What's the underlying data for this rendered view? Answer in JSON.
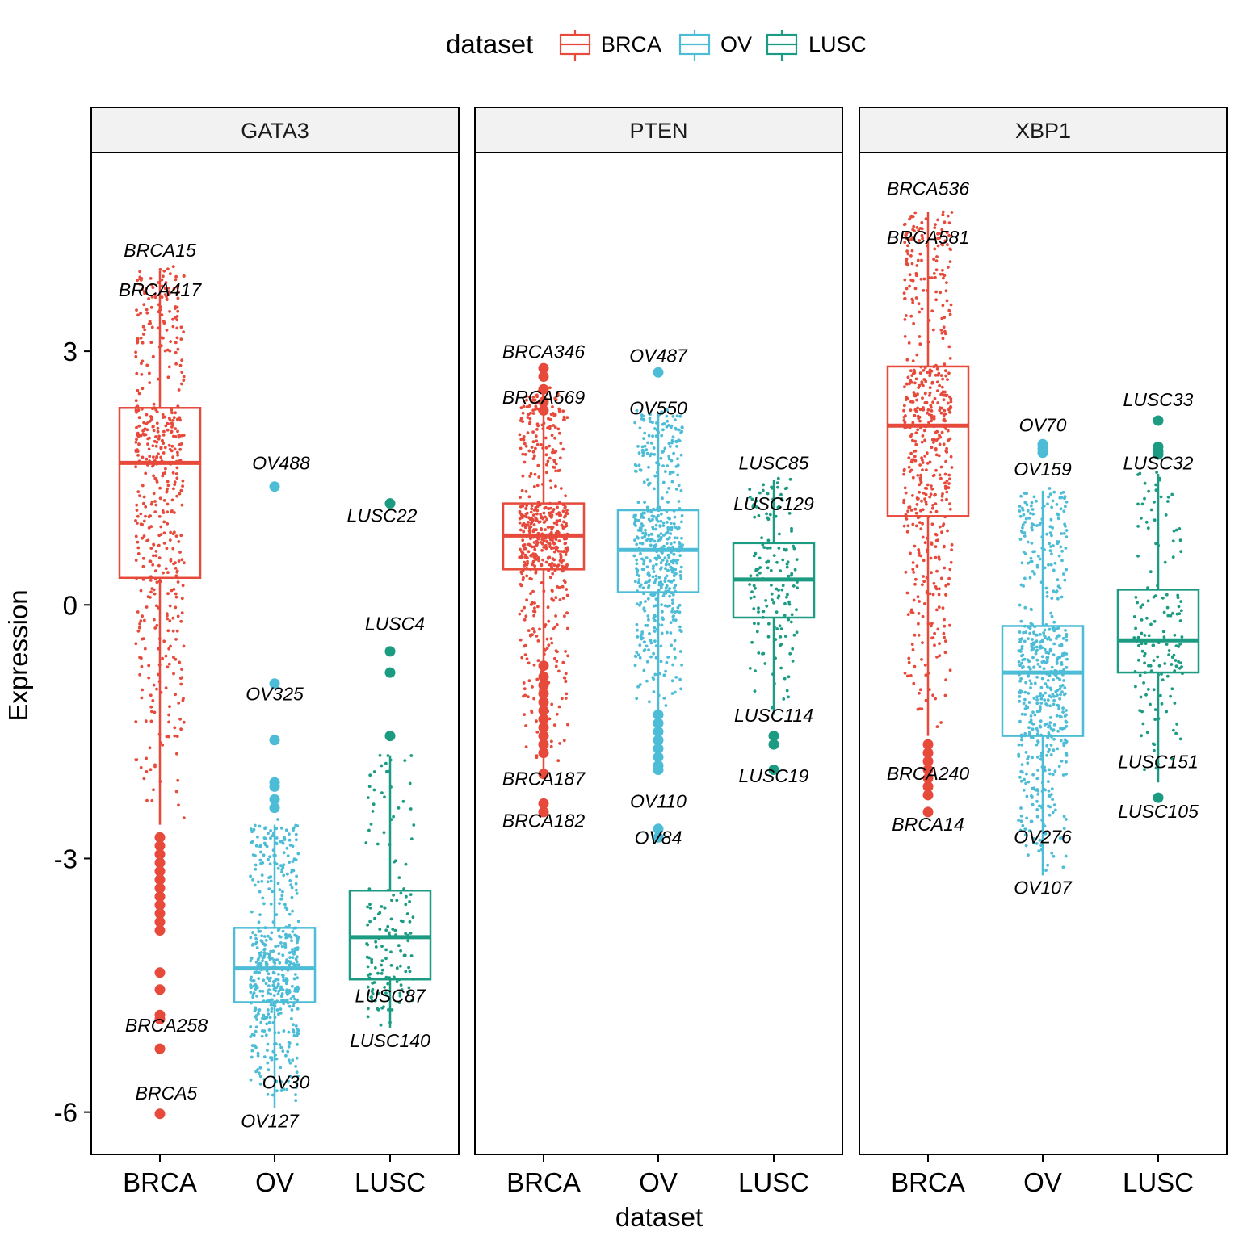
{
  "colors": {
    "BRCA": "#E7493A",
    "OV": "#4CBCD7",
    "LUSC": "#1A9B82"
  },
  "chart_data": {
    "type": "box",
    "subtype": "faceted boxplot with jittered points and labelled outliers",
    "legend": {
      "title": "dataset",
      "position": "top",
      "entries": [
        "BRCA",
        "OV",
        "LUSC"
      ]
    },
    "xlabel": "dataset",
    "ylabel": "Expression",
    "ylim": [
      -6.5,
      5.35
    ],
    "yticks": [
      3,
      0,
      -3,
      -6
    ],
    "ytick_labels": [
      "3",
      "0",
      "-3",
      "-6"
    ],
    "categories": [
      "BRCA",
      "OV",
      "LUSC"
    ],
    "facets": [
      {
        "name": "GATA3",
        "boxes": [
          {
            "dataset": "BRCA",
            "q1": 0.32,
            "median": 1.68,
            "q3": 2.33,
            "whisker_low": -2.6,
            "whisker_high": 3.95,
            "n_points": 520,
            "outliers": [
              -2.75,
              -2.85,
              -2.95,
              -3.05,
              -3.15,
              -3.25,
              -3.35,
              -3.45,
              -3.55,
              -3.65,
              -3.75,
              -3.85,
              -4.35,
              -4.55,
              -4.85,
              -4.9,
              -5.25,
              -6.02
            ],
            "labels": [
              {
                "text": "BRCA15",
                "y": 4.12,
                "dx": 0
              },
              {
                "text": "BRCA417",
                "y": 3.65,
                "dx": 0
              },
              {
                "text": "BRCA258",
                "y": -5.05,
                "dx": 8
              },
              {
                "text": "BRCA5",
                "y": -5.85,
                "dx": 8
              }
            ]
          },
          {
            "dataset": "OV",
            "q1": -4.7,
            "median": -4.3,
            "q3": -3.82,
            "whisker_low": -5.95,
            "whisker_high": -2.6,
            "n_points": 500,
            "outliers": [
              1.4,
              -0.93,
              -1.6,
              -2.1,
              -2.15,
              -2.3,
              -2.4
            ],
            "labels": [
              {
                "text": "OV488",
                "y": 1.6,
                "dx": 8
              },
              {
                "text": "OV325",
                "y": -1.13,
                "dx": 0
              },
              {
                "text": "OV30",
                "y": -5.72,
                "dx": 14
              },
              {
                "text": "OV127",
                "y": -6.18,
                "dx": -6
              }
            ]
          },
          {
            "dataset": "LUSC",
            "q1": -4.43,
            "median": -3.93,
            "q3": -3.38,
            "whisker_low": -5.0,
            "whisker_high": -1.78,
            "n_points": 150,
            "outliers": [
              1.2,
              -0.55,
              -0.8,
              -1.55
            ],
            "labels": [
              {
                "text": "LUSC22",
                "y": 0.98,
                "dx": -10
              },
              {
                "text": "LUSC4",
                "y": -0.3,
                "dx": 6
              },
              {
                "text": "LUSC87",
                "y": -4.7,
                "dx": 0
              },
              {
                "text": "LUSC140",
                "y": -5.23,
                "dx": 0
              }
            ]
          }
        ]
      },
      {
        "name": "PTEN",
        "boxes": [
          {
            "dataset": "BRCA",
            "q1": 0.42,
            "median": 0.82,
            "q3": 1.2,
            "whisker_low": -1.95,
            "whisker_high": 2.5,
            "n_points": 560,
            "outliers": [
              2.8,
              2.7,
              2.55,
              2.4,
              2.3,
              -0.72,
              -0.85,
              -0.95,
              -1.05,
              -1.15,
              -1.25,
              -1.35,
              -1.45,
              -1.55,
              -1.65,
              -1.75,
              -2.0,
              -2.35,
              -2.45
            ],
            "labels": [
              {
                "text": "BRCA346",
                "y": 2.92,
                "dx": 0
              },
              {
                "text": "BRCA569",
                "y": 2.38,
                "dx": 0
              },
              {
                "text": "BRCA187",
                "y": -2.13,
                "dx": 0
              },
              {
                "text": "BRCA182",
                "y": -2.63,
                "dx": 0
              }
            ]
          },
          {
            "dataset": "OV",
            "q1": 0.15,
            "median": 0.65,
            "q3": 1.12,
            "whisker_low": -1.25,
            "whisker_high": 2.28,
            "n_points": 500,
            "outliers": [
              2.75,
              -1.3,
              -1.4,
              -1.5,
              -1.6,
              -1.7,
              -1.8,
              -1.9,
              -1.95,
              -2.65,
              -2.75
            ],
            "labels": [
              {
                "text": "OV487",
                "y": 2.87,
                "dx": 0
              },
              {
                "text": "OV550",
                "y": 2.25,
                "dx": 0
              },
              {
                "text": "OV110",
                "y": -2.4,
                "dx": 0
              },
              {
                "text": "OV84",
                "y": -2.83,
                "dx": 0
              }
            ]
          },
          {
            "dataset": "LUSC",
            "q1": -0.15,
            "median": 0.3,
            "q3": 0.73,
            "whisker_low": -1.3,
            "whisker_high": 1.48,
            "n_points": 150,
            "outliers": [
              -1.55,
              -1.65,
              -1.95
            ],
            "labels": [
              {
                "text": "LUSC85",
                "y": 1.6,
                "dx": 0
              },
              {
                "text": "LUSC129",
                "y": 1.12,
                "dx": 0
              },
              {
                "text": "LUSC114",
                "y": -1.38,
                "dx": 0
              },
              {
                "text": "LUSC19",
                "y": -2.1,
                "dx": 0
              }
            ]
          }
        ]
      },
      {
        "name": "XBP1",
        "boxes": [
          {
            "dataset": "BRCA",
            "q1": 1.05,
            "median": 2.12,
            "q3": 2.82,
            "whisker_low": -1.55,
            "whisker_high": 4.65,
            "n_points": 560,
            "outliers": [
              -1.65,
              -1.75,
              -1.85,
              -1.95,
              -2.05,
              -2.15,
              -2.25,
              -2.45
            ],
            "labels": [
              {
                "text": "BRCA536",
                "y": 4.85,
                "dx": 0
              },
              {
                "text": "BRCA581",
                "y": 4.27,
                "dx": 0
              },
              {
                "text": "BRCA240",
                "y": -2.07,
                "dx": 0
              },
              {
                "text": "BRCA14",
                "y": -2.67,
                "dx": 0
              }
            ]
          },
          {
            "dataset": "OV",
            "q1": -1.55,
            "median": -0.8,
            "q3": -0.25,
            "whisker_low": -3.2,
            "whisker_high": 1.35,
            "n_points": 560,
            "outliers": [
              1.9,
              1.85,
              1.8
            ],
            "labels": [
              {
                "text": "OV70",
                "y": 2.05,
                "dx": 0
              },
              {
                "text": "OV159",
                "y": 1.53,
                "dx": 0
              },
              {
                "text": "OV276",
                "y": -2.82,
                "dx": 0
              },
              {
                "text": "OV107",
                "y": -3.42,
                "dx": 0
              }
            ]
          },
          {
            "dataset": "LUSC",
            "q1": -0.8,
            "median": -0.42,
            "q3": 0.18,
            "whisker_low": -2.1,
            "whisker_high": 1.55,
            "n_points": 150,
            "outliers": [
              2.18,
              1.87,
              1.82,
              1.78,
              -2.28
            ],
            "labels": [
              {
                "text": "LUSC33",
                "y": 2.35,
                "dx": 0
              },
              {
                "text": "LUSC32",
                "y": 1.6,
                "dx": 0
              },
              {
                "text": "LUSC151",
                "y": -1.93,
                "dx": 0
              },
              {
                "text": "LUSC105",
                "y": -2.52,
                "dx": 0
              }
            ]
          }
        ]
      }
    ]
  }
}
